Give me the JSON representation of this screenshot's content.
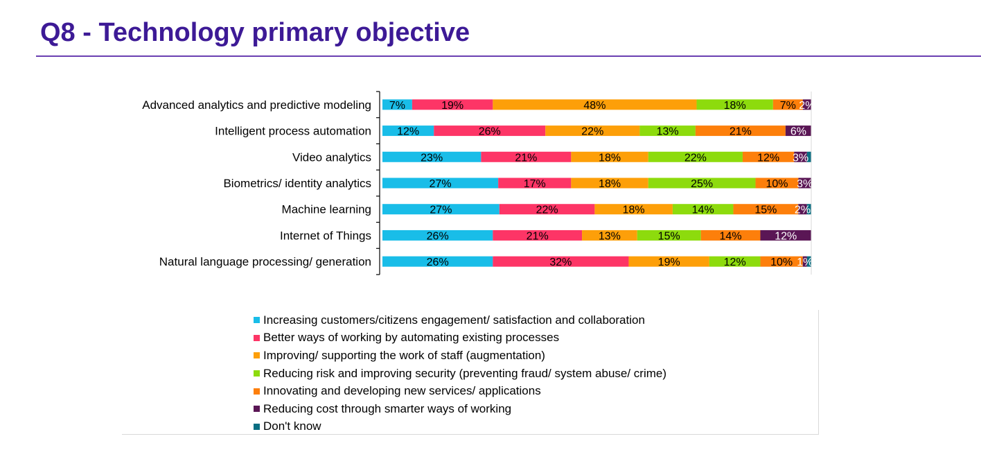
{
  "page": {
    "title": "Q8 - Technology primary objective"
  },
  "chart_data": {
    "type": "bar",
    "orientation": "horizontal",
    "stacked": true,
    "percent_stacked": true,
    "categories": [
      "Advanced analytics and predictive modeling",
      "Intelligent process automation",
      "Video analytics",
      "Biometrics/ identity analytics",
      "Machine learning",
      "Internet of Things",
      "Natural language processing/ generation"
    ],
    "series": [
      {
        "name": "Increasing customers/citizens engagement/ satisfaction and collaboration",
        "color": "#19bde8",
        "values": [
          7,
          12,
          23,
          27,
          27,
          26,
          26
        ]
      },
      {
        "name": "Better ways of working by automating existing processes",
        "color": "#fd3566",
        "values": [
          19,
          26,
          21,
          17,
          22,
          21,
          32
        ]
      },
      {
        "name": "Improving/ supporting the work of staff (augmentation)",
        "color": "#fd9f09",
        "values": [
          48,
          22,
          18,
          18,
          18,
          13,
          19
        ]
      },
      {
        "name": "Reducing risk and improving security (preventing fraud/ system abuse/ crime)",
        "color": "#8ddb0d",
        "values": [
          18,
          13,
          22,
          25,
          14,
          15,
          12
        ]
      },
      {
        "name": "Innovating and developing new services/ applications",
        "color": "#fd7f0b",
        "values": [
          7,
          21,
          12,
          10,
          15,
          14,
          10
        ]
      },
      {
        "name": "Reducing cost through smarter ways of working",
        "color": "#5a1655",
        "values": [
          2,
          6,
          3,
          3,
          2,
          12,
          1
        ]
      },
      {
        "name": "Don't know",
        "color": "#0a6e82",
        "values": [
          0,
          0,
          1,
          0,
          1,
          0,
          1
        ]
      }
    ],
    "data_labels": [
      [
        "7%",
        "19%",
        "48%",
        "18%",
        "7%",
        "2%",
        ""
      ],
      [
        "12%",
        "26%",
        "22%",
        "13%",
        "21%",
        "6%",
        ""
      ],
      [
        "23%",
        "21%",
        "18%",
        "22%",
        "12%",
        "3%",
        ""
      ],
      [
        "27%",
        "17%",
        "18%",
        "25%",
        "10%",
        "3%",
        ""
      ],
      [
        "27%",
        "22%",
        "18%",
        "14%",
        "15%",
        "2%",
        ""
      ],
      [
        "26%",
        "21%",
        "13%",
        "15%",
        "14%",
        "12%",
        ""
      ],
      [
        "26%",
        "32%",
        "19%",
        "12%",
        "10%",
        "1%",
        ""
      ]
    ],
    "label_colors": [
      "#000000",
      "#000000",
      "#000000",
      "#000000",
      "#000000",
      "#ffffff",
      "#ffffff"
    ],
    "xlim": [
      0,
      100
    ],
    "legend_position": "bottom",
    "grid": false
  }
}
